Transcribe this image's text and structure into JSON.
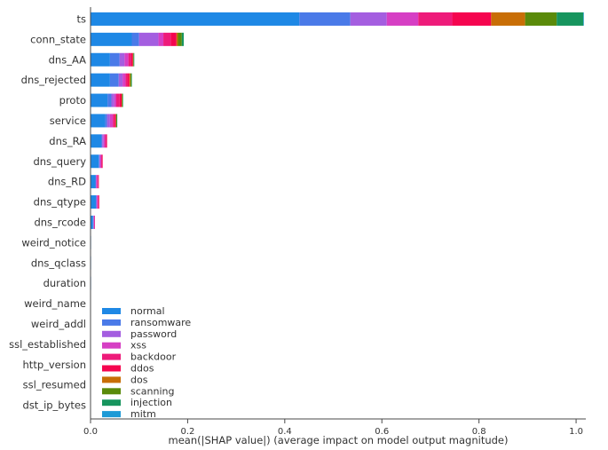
{
  "chart_data": {
    "type": "bar",
    "orientation": "horizontal",
    "stacked": true,
    "title": "",
    "xlabel": "mean(|SHAP value|) (average impact on model output magnitude)",
    "ylabel": "",
    "xlim": [
      0,
      1.02
    ],
    "xticks": [
      "0.0",
      "0.2",
      "0.4",
      "0.6",
      "0.8",
      "1.0"
    ],
    "xtick_values": [
      0.0,
      0.2,
      0.4,
      0.6,
      0.8,
      1.0
    ],
    "grid": false,
    "legend_position": "bottom-left",
    "categories": [
      "ts",
      "conn_state",
      "dns_AA",
      "dns_rejected",
      "proto",
      "service",
      "dns_RA",
      "dns_query",
      "dns_RD",
      "dns_qtype",
      "dns_rcode",
      "weird_notice",
      "dns_qclass",
      "duration",
      "weird_name",
      "weird_addl",
      "ssl_established",
      "http_version",
      "ssl_resumed",
      "dst_ip_bytes"
    ],
    "series": [
      {
        "name": "normal",
        "color": "#1E88E5",
        "values": [
          0.43,
          0.085,
          0.04,
          0.04,
          0.035,
          0.03,
          0.022,
          0.017,
          0.01,
          0.011,
          0.005,
          0.001,
          0.0005,
          0.0005,
          0,
          0,
          0,
          0,
          0,
          0
        ]
      },
      {
        "name": "ransomware",
        "color": "#4A7AE8",
        "values": [
          0.105,
          0.015,
          0.02,
          0.018,
          0.008,
          0.004,
          0.002,
          0.001,
          0.001,
          0.001,
          0.001,
          0,
          0,
          0,
          0,
          0,
          0,
          0,
          0,
          0
        ]
      },
      {
        "name": "password",
        "color": "#A45EE0",
        "values": [
          0.075,
          0.04,
          0.01,
          0.008,
          0.006,
          0.006,
          0.003,
          0.002,
          0.001,
          0.001,
          0.001,
          0,
          0,
          0,
          0,
          0,
          0,
          0,
          0,
          0
        ]
      },
      {
        "name": "xss",
        "color": "#D63FC4",
        "values": [
          0.065,
          0.01,
          0.008,
          0.006,
          0.004,
          0.006,
          0.003,
          0.002,
          0.002,
          0.002,
          0.001,
          0,
          0,
          0,
          0,
          0,
          0,
          0,
          0,
          0
        ]
      },
      {
        "name": "backdoor",
        "color": "#EE1B7A",
        "values": [
          0.07,
          0.015,
          0.006,
          0.004,
          0.007,
          0.004,
          0.003,
          0.002,
          0.002,
          0.002,
          0.0005,
          0,
          0,
          0,
          0,
          0,
          0,
          0,
          0,
          0
        ]
      },
      {
        "name": "ddos",
        "color": "#F5054F",
        "values": [
          0.08,
          0.012,
          0.003,
          0.004,
          0.004,
          0.002,
          0.001,
          0.001,
          0.001,
          0.001,
          0,
          0,
          0,
          0,
          0,
          0,
          0,
          0,
          0,
          0
        ]
      },
      {
        "name": "dos",
        "color": "#C86E06",
        "values": [
          0.07,
          0.003,
          0.001,
          0.002,
          0.001,
          0.001,
          0,
          0,
          0,
          0,
          0,
          0,
          0,
          0,
          0,
          0,
          0,
          0,
          0,
          0
        ]
      },
      {
        "name": "scanning",
        "color": "#5A8A0A",
        "values": [
          0.065,
          0.008,
          0.001,
          0.002,
          0.001,
          0.001,
          0,
          0,
          0,
          0,
          0,
          0,
          0,
          0,
          0,
          0,
          0,
          0,
          0,
          0
        ]
      },
      {
        "name": "injection",
        "color": "#17955E",
        "values": [
          0.055,
          0.004,
          0.001,
          0.001,
          0.001,
          0.001,
          0,
          0,
          0,
          0,
          0,
          0,
          0,
          0,
          0,
          0,
          0,
          0,
          0,
          0
        ]
      },
      {
        "name": "mitm",
        "color": "#1E9AD6",
        "values": [
          0.001,
          0,
          0,
          0,
          0,
          0,
          0,
          0,
          0,
          0,
          0,
          0,
          0,
          0,
          0,
          0,
          0,
          0,
          0,
          0
        ]
      }
    ]
  }
}
